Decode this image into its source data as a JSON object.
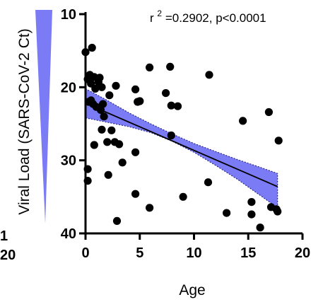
{
  "chart_data": {
    "type": "scatter",
    "title": "",
    "xlabel": "Age",
    "ylabel": "Viral Load (SARS-CoV-2 Ct)",
    "xlim": [
      0,
      20
    ],
    "ylim": [
      10,
      40
    ],
    "y_inverted": true,
    "x_ticks": [
      "0",
      "5",
      "10",
      "15",
      "20"
    ],
    "y_ticks": [
      "10",
      "20",
      "30",
      "40"
    ],
    "annotation": {
      "r_prefix": "r",
      "r_exp": "2",
      "r_value": "=0.2902, p<0.0001"
    },
    "left_edge_fragments": [
      "1",
      "20"
    ],
    "grid": false,
    "legend": "none",
    "colors": {
      "band": "#7b7cf5",
      "band_edge": "#2a2a8a",
      "points": "#000000",
      "fit_line": "#000000"
    },
    "regression": {
      "x": [
        0,
        17.7
      ],
      "y": [
        22.2,
        33.6
      ]
    },
    "confidence_band": {
      "x": [
        0,
        2,
        4,
        6,
        8,
        10,
        12,
        14,
        16,
        17.7
      ],
      "lower": [
        20.2,
        21.8,
        23.5,
        25.0,
        26.4,
        27.7,
        28.8,
        29.9,
        30.9,
        31.8
      ],
      "upper": [
        24.2,
        24.8,
        25.4,
        26.2,
        27.4,
        28.9,
        30.7,
        32.6,
        34.7,
        36.5
      ]
    },
    "points": [
      {
        "x": 0.0,
        "y": 15.2
      },
      {
        "x": 0.4,
        "y": 18.3
      },
      {
        "x": 0.6,
        "y": 14.6
      },
      {
        "x": 0.2,
        "y": 18.9
      },
      {
        "x": 0.5,
        "y": 19.5
      },
      {
        "x": 0.8,
        "y": 18.6
      },
      {
        "x": 1.3,
        "y": 18.7
      },
      {
        "x": 1.2,
        "y": 19.3
      },
      {
        "x": 0.9,
        "y": 20.2
      },
      {
        "x": 1.5,
        "y": 20.0
      },
      {
        "x": 0.3,
        "y": 22.0
      },
      {
        "x": 0.7,
        "y": 22.3
      },
      {
        "x": 0.5,
        "y": 21.8
      },
      {
        "x": 1.0,
        "y": 22.7
      },
      {
        "x": 1.6,
        "y": 22.3
      },
      {
        "x": 1.4,
        "y": 23.1
      },
      {
        "x": 1.7,
        "y": 24.0
      },
      {
        "x": 2.2,
        "y": 21.1
      },
      {
        "x": 2.8,
        "y": 19.8
      },
      {
        "x": 4.6,
        "y": 20.3
      },
      {
        "x": 4.8,
        "y": 22.0
      },
      {
        "x": 5.0,
        "y": 21.9
      },
      {
        "x": 5.9,
        "y": 17.3
      },
      {
        "x": 7.8,
        "y": 17.2
      },
      {
        "x": 7.4,
        "y": 20.8
      },
      {
        "x": 7.9,
        "y": 22.5
      },
      {
        "x": 8.5,
        "y": 22.6
      },
      {
        "x": 11.4,
        "y": 18.3
      },
      {
        "x": 1.5,
        "y": 25.8
      },
      {
        "x": 2.4,
        "y": 25.9
      },
      {
        "x": 2.7,
        "y": 27.5
      },
      {
        "x": 2.0,
        "y": 27.5
      },
      {
        "x": 3.1,
        "y": 27.8
      },
      {
        "x": 0.8,
        "y": 27.9
      },
      {
        "x": 4.6,
        "y": 28.9
      },
      {
        "x": 3.4,
        "y": 30.3
      },
      {
        "x": 0.2,
        "y": 31.2
      },
      {
        "x": 2.1,
        "y": 32.0
      },
      {
        "x": 0.2,
        "y": 32.8
      },
      {
        "x": 7.9,
        "y": 26.6
      },
      {
        "x": 14.5,
        "y": 24.6
      },
      {
        "x": 16.9,
        "y": 23.4
      },
      {
        "x": 17.8,
        "y": 27.3
      },
      {
        "x": 11.3,
        "y": 33.0
      },
      {
        "x": 4.6,
        "y": 34.6
      },
      {
        "x": 9.0,
        "y": 35.0
      },
      {
        "x": 5.9,
        "y": 36.5
      },
      {
        "x": 15.3,
        "y": 35.7
      },
      {
        "x": 17.1,
        "y": 36.4
      },
      {
        "x": 17.6,
        "y": 36.7
      },
      {
        "x": 17.7,
        "y": 37.0
      },
      {
        "x": 13.0,
        "y": 37.2
      },
      {
        "x": 15.3,
        "y": 37.4
      },
      {
        "x": 2.9,
        "y": 38.3
      },
      {
        "x": 16.1,
        "y": 39.2
      }
    ]
  }
}
